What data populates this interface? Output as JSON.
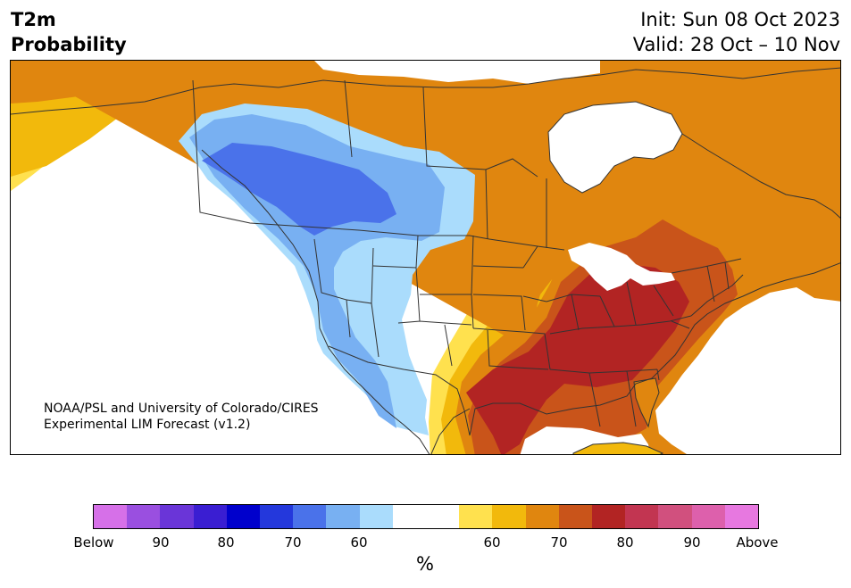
{
  "title": {
    "left_line1": "T2m",
    "left_line2": "Probability",
    "init": "Init: Sun 08 Oct 2023",
    "valid": "Valid: 28 Oct – 10 Nov"
  },
  "credit": {
    "line1": "NOAA/PSL and University of Colorado/CIRES",
    "line2": "Experimental LIM Forecast (v1.2)"
  },
  "colorbar": {
    "colors": [
      "#d670e8",
      "#9a4fe0",
      "#6a35d8",
      "#3a1ed2",
      "#0000cc",
      "#2438dc",
      "#4a72ea",
      "#78b0f2",
      "#aadcfc",
      "#ffffff",
      "#ffffff",
      "#ffe14e",
      "#f2b90c",
      "#e0860f",
      "#c9541a",
      "#b22423",
      "#c23551",
      "#d1507e",
      "#dd60ac",
      "#e778e0"
    ],
    "tick_labels": [
      "Below",
      "90",
      "80",
      "70",
      "60",
      "60",
      "70",
      "80",
      "90",
      "Above"
    ],
    "unit": "%"
  },
  "palette": {
    "light_blue": "#aadcfc",
    "mid_blue": "#78b0f2",
    "blue": "#4a72ea",
    "yellow": "#ffe14e",
    "gold": "#f2b90c",
    "orange": "#e0860f",
    "rust": "#c9541a",
    "red": "#b22423",
    "boundary": "#333333"
  }
}
